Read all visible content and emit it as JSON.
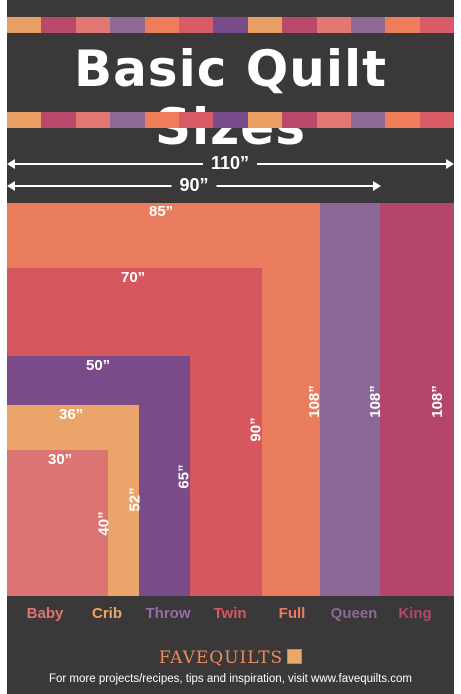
{
  "title": "Basic Quilt Sizes",
  "stripe_colors": [
    "#e99f64",
    "#b9496b",
    "#e27871",
    "#8e6b96",
    "#ef7d5a",
    "#d95b66",
    "#7a4b8a",
    "#e99f64",
    "#b9496b",
    "#e27871",
    "#8e6b96",
    "#ef7d5a",
    "#d95b66"
  ],
  "dimensions": {
    "width_110": "110”",
    "width_90": "90”"
  },
  "quilts": [
    {
      "name": "Baby",
      "width": "30”",
      "length": "40”",
      "color": "#dc7474"
    },
    {
      "name": "Crib",
      "width": "36”",
      "length": "52”",
      "color": "#eba56a"
    },
    {
      "name": "Throw",
      "width": "50”",
      "length": "65”",
      "color": "#7b4a88"
    },
    {
      "name": "Twin",
      "width": "70”",
      "length": "90”",
      "color": "#d6585e"
    },
    {
      "name": "Full",
      "width": "85”",
      "length": "108”",
      "color": "#e97c5c"
    },
    {
      "name": "Queen",
      "length": "108”",
      "color": "#8b6898"
    },
    {
      "name": "King",
      "length": "108”",
      "color": "#b3466a"
    }
  ],
  "brand": {
    "name": "FAVEQUILTS"
  },
  "footer": "For more projects/recipes, tips and inspiration, visit www.favequilts.com"
}
